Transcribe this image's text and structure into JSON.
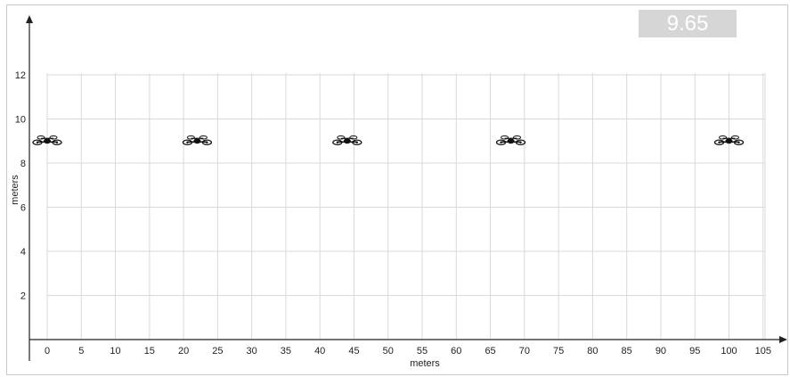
{
  "readout": "9.65",
  "chart_data": {
    "type": "scatter",
    "title": "",
    "xlabel": "meters",
    "ylabel": "meters",
    "xlim": [
      -2.5,
      105
    ],
    "ylim": [
      0,
      12
    ],
    "x_ticks": [
      0,
      5,
      10,
      15,
      20,
      25,
      30,
      35,
      40,
      45,
      50,
      55,
      60,
      65,
      70,
      75,
      80,
      85,
      90,
      95,
      100,
      105
    ],
    "y_ticks": [
      2,
      4,
      6,
      8,
      10,
      12
    ],
    "grid": true,
    "marker_icon": "drone-icon",
    "series": [
      {
        "x": [
          0,
          22,
          44,
          68,
          100
        ],
        "y": [
          9,
          9,
          9,
          9,
          9
        ]
      }
    ]
  }
}
